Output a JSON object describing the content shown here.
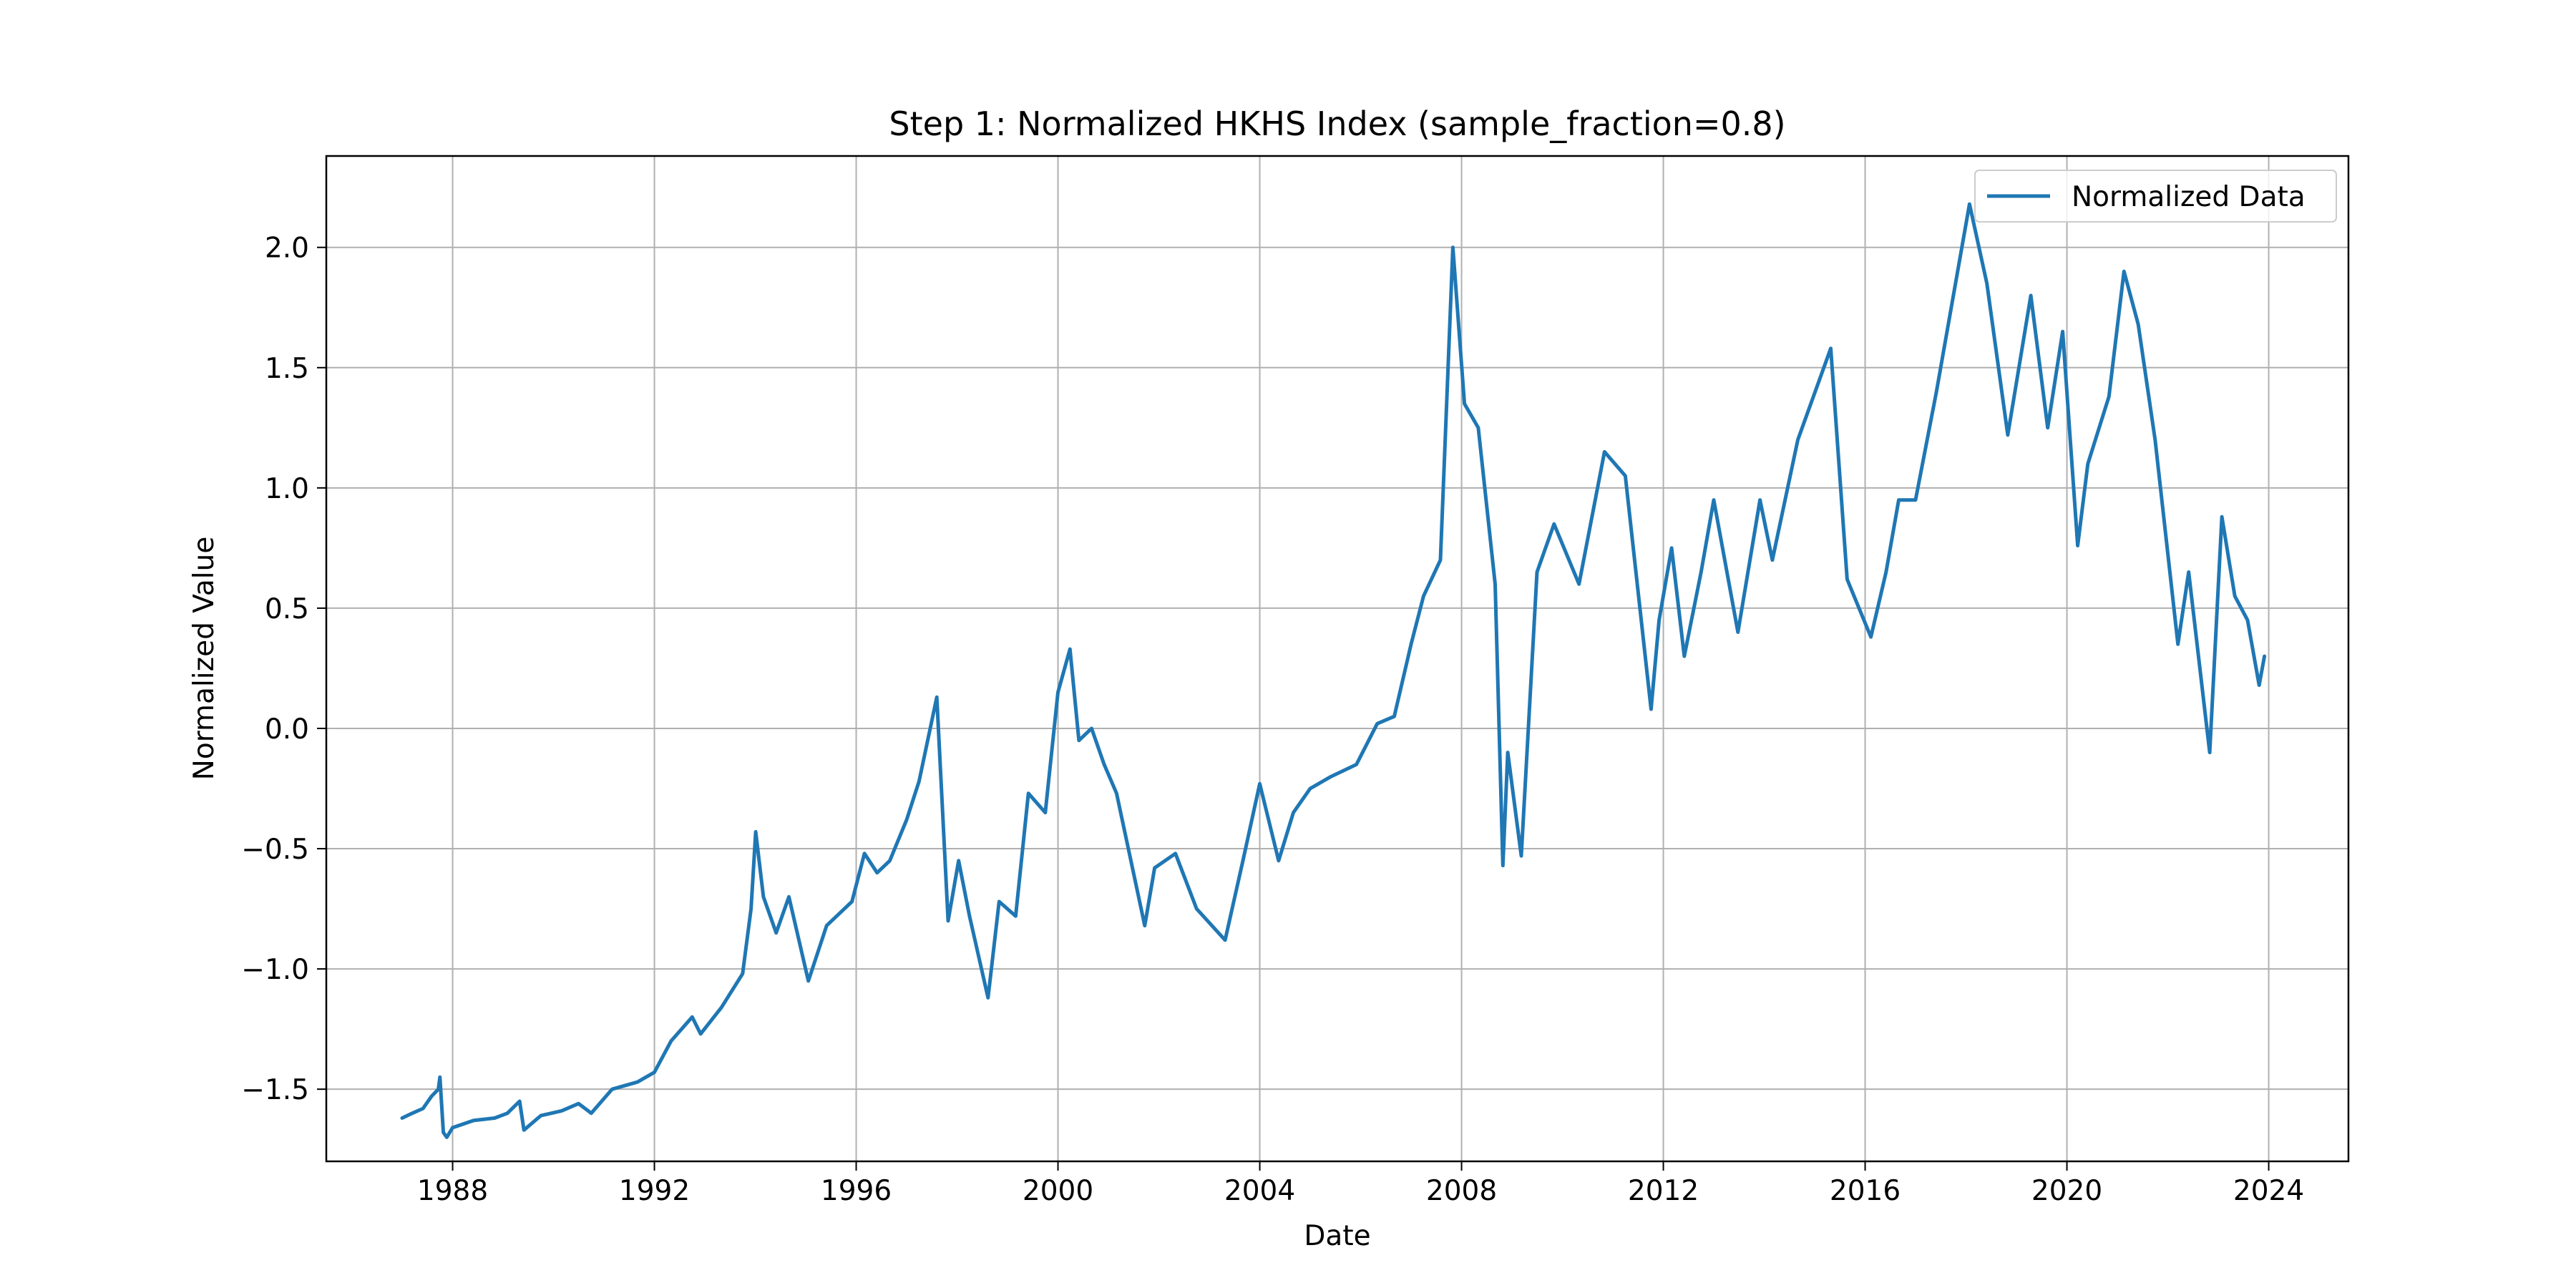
{
  "chart_data": {
    "type": "line",
    "title": "Step 1: Normalized HKHS Index (sample_fraction=0.8)",
    "xlabel": "Date",
    "ylabel": "Normalized Value",
    "x_tick_labels": [
      "1988",
      "1992",
      "1996",
      "2000",
      "2004",
      "2008",
      "2012",
      "2016",
      "2020",
      "2024"
    ],
    "y_tick_labels": [
      "−1.5",
      "−1.0",
      "−0.5",
      "0.0",
      "0.5",
      "1.0",
      "1.5",
      "2.0"
    ],
    "xlim": [
      "1985-07-01",
      "2025-08-01"
    ],
    "ylim": [
      -1.8,
      2.38
    ],
    "grid": true,
    "legend": "top-right",
    "series": [
      {
        "name": "Normalized Data",
        "color": "#1f77b4",
        "points": [
          [
            "1987-01-01",
            -1.62
          ],
          [
            "1987-03-15",
            -1.6
          ],
          [
            "1987-06-01",
            -1.58
          ],
          [
            "1987-08-01",
            -1.53
          ],
          [
            "1987-09-20",
            -1.5
          ],
          [
            "1987-10-01",
            -1.45
          ],
          [
            "1987-10-26",
            -1.68
          ],
          [
            "1987-11-20",
            -1.7
          ],
          [
            "1988-01-01",
            -1.66
          ],
          [
            "1988-06-01",
            -1.63
          ],
          [
            "1988-11-01",
            -1.62
          ],
          [
            "1989-02-01",
            -1.6
          ],
          [
            "1989-05-01",
            -1.55
          ],
          [
            "1989-06-01",
            -1.67
          ],
          [
            "1989-10-01",
            -1.61
          ],
          [
            "1990-03-01",
            -1.59
          ],
          [
            "1990-07-01",
            -1.56
          ],
          [
            "1990-10-01",
            -1.6
          ],
          [
            "1991-03-01",
            -1.5
          ],
          [
            "1991-09-01",
            -1.47
          ],
          [
            "1992-01-01",
            -1.43
          ],
          [
            "1992-05-01",
            -1.3
          ],
          [
            "1992-10-01",
            -1.2
          ],
          [
            "1992-12-01",
            -1.27
          ],
          [
            "1993-05-01",
            -1.16
          ],
          [
            "1993-10-01",
            -1.02
          ],
          [
            "1993-12-01",
            -0.75
          ],
          [
            "1994-01-04",
            -0.43
          ],
          [
            "1994-03-01",
            -0.7
          ],
          [
            "1994-06-01",
            -0.85
          ],
          [
            "1994-09-01",
            -0.7
          ],
          [
            "1995-01-20",
            -1.05
          ],
          [
            "1995-06-01",
            -0.82
          ],
          [
            "1995-12-01",
            -0.72
          ],
          [
            "1996-03-01",
            -0.52
          ],
          [
            "1996-06-01",
            -0.6
          ],
          [
            "1996-09-01",
            -0.55
          ],
          [
            "1997-01-01",
            -0.38
          ],
          [
            "1997-04-01",
            -0.22
          ],
          [
            "1997-08-07",
            0.13
          ],
          [
            "1997-10-28",
            -0.8
          ],
          [
            "1998-01-12",
            -0.55
          ],
          [
            "1998-04-01",
            -0.78
          ],
          [
            "1998-08-13",
            -1.12
          ],
          [
            "1998-11-01",
            -0.72
          ],
          [
            "1999-03-01",
            -0.78
          ],
          [
            "1999-06-01",
            -0.27
          ],
          [
            "1999-10-01",
            -0.35
          ],
          [
            "2000-01-01",
            0.15
          ],
          [
            "2000-03-28",
            0.33
          ],
          [
            "2000-06-01",
            -0.05
          ],
          [
            "2000-09-01",
            0.0
          ],
          [
            "2000-12-01",
            -0.15
          ],
          [
            "2001-03-01",
            -0.27
          ],
          [
            "2001-09-21",
            -0.82
          ],
          [
            "2001-12-01",
            -0.58
          ],
          [
            "2002-05-01",
            -0.52
          ],
          [
            "2002-10-01",
            -0.75
          ],
          [
            "2003-04-25",
            -0.88
          ],
          [
            "2003-09-01",
            -0.55
          ],
          [
            "2004-01-01",
            -0.23
          ],
          [
            "2004-05-17",
            -0.55
          ],
          [
            "2004-09-01",
            -0.35
          ],
          [
            "2005-01-01",
            -0.25
          ],
          [
            "2005-06-01",
            -0.2
          ],
          [
            "2005-12-01",
            -0.15
          ],
          [
            "2006-05-01",
            0.02
          ],
          [
            "2006-09-01",
            0.05
          ],
          [
            "2007-01-01",
            0.35
          ],
          [
            "2007-04-01",
            0.55
          ],
          [
            "2007-08-01",
            0.7
          ],
          [
            "2007-10-30",
            2.0
          ],
          [
            "2008-01-22",
            1.35
          ],
          [
            "2008-05-01",
            1.25
          ],
          [
            "2008-09-01",
            0.6
          ],
          [
            "2008-10-27",
            -0.57
          ],
          [
            "2008-12-01",
            -0.1
          ],
          [
            "2009-03-09",
            -0.53
          ],
          [
            "2009-07-01",
            0.65
          ],
          [
            "2009-11-01",
            0.85
          ],
          [
            "2010-05-01",
            0.6
          ],
          [
            "2010-11-01",
            1.15
          ],
          [
            "2011-04-01",
            1.05
          ],
          [
            "2011-10-04",
            0.08
          ],
          [
            "2011-12-01",
            0.45
          ],
          [
            "2012-03-01",
            0.75
          ],
          [
            "2012-06-01",
            0.3
          ],
          [
            "2012-10-01",
            0.65
          ],
          [
            "2013-01-01",
            0.95
          ],
          [
            "2013-06-25",
            0.4
          ],
          [
            "2013-12-01",
            0.95
          ],
          [
            "2014-03-01",
            0.7
          ],
          [
            "2014-09-01",
            1.2
          ],
          [
            "2015-04-27",
            1.58
          ],
          [
            "2015-08-24",
            0.62
          ],
          [
            "2016-02-12",
            0.38
          ],
          [
            "2016-06-01",
            0.65
          ],
          [
            "2016-09-01",
            0.95
          ],
          [
            "2017-01-01",
            0.95
          ],
          [
            "2017-06-01",
            1.4
          ],
          [
            "2018-01-26",
            2.18
          ],
          [
            "2018-06-01",
            1.85
          ],
          [
            "2018-10-30",
            1.22
          ],
          [
            "2019-04-15",
            1.8
          ],
          [
            "2019-08-15",
            1.25
          ],
          [
            "2019-12-01",
            1.65
          ],
          [
            "2020-03-19",
            0.76
          ],
          [
            "2020-06-01",
            1.1
          ],
          [
            "2020-11-01",
            1.38
          ],
          [
            "2021-02-18",
            1.9
          ],
          [
            "2021-06-01",
            1.68
          ],
          [
            "2021-10-01",
            1.2
          ],
          [
            "2022-03-15",
            0.35
          ],
          [
            "2022-06-01",
            0.65
          ],
          [
            "2022-10-31",
            -0.1
          ],
          [
            "2023-01-27",
            0.88
          ],
          [
            "2023-05-01",
            0.55
          ],
          [
            "2023-08-01",
            0.45
          ],
          [
            "2023-10-24",
            0.18
          ],
          [
            "2023-12-01",
            0.3
          ]
        ]
      }
    ]
  }
}
